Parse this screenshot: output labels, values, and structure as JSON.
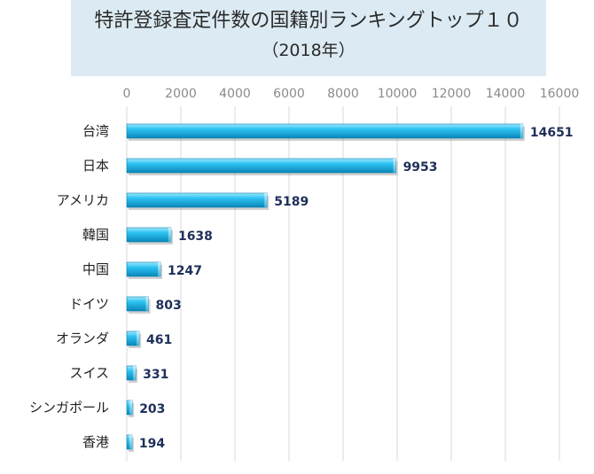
{
  "chart_data": {
    "type": "bar",
    "orientation": "horizontal",
    "title": "特許登録査定件数の国籍別ランキングトップ１０",
    "subtitle": "（2018年）",
    "xlabel": "",
    "ylabel": "",
    "xlim": [
      0,
      16000
    ],
    "x_ticks": [
      "0",
      "2000",
      "4000",
      "6000",
      "8000",
      "10000",
      "12000",
      "14000",
      "16000"
    ],
    "x_tick_values": [
      0,
      2000,
      4000,
      6000,
      8000,
      10000,
      12000,
      14000,
      16000
    ],
    "x_axis_position": "top",
    "grid": true,
    "legend": "none",
    "categories": [
      "台湾",
      "日本",
      "アメリカ",
      "韓国",
      "中国",
      "ドイツ",
      "オランダ",
      "スイス",
      "シンガポール",
      "香港"
    ],
    "values": [
      14651,
      9953,
      5189,
      1638,
      1247,
      803,
      461,
      331,
      203,
      194
    ],
    "value_labels": [
      "14651",
      "9953",
      "5189",
      "1638",
      "1247",
      "803",
      "461",
      "331",
      "203",
      "194"
    ],
    "colors": {
      "bar_top": "#8fe3fa",
      "bar_mid": "#1fb8ec",
      "bar_bottom": "#0e8ec2",
      "title_bg": "#dcebf3",
      "grid": "#d9d9d9",
      "value_text": "#1f2f5a"
    }
  }
}
